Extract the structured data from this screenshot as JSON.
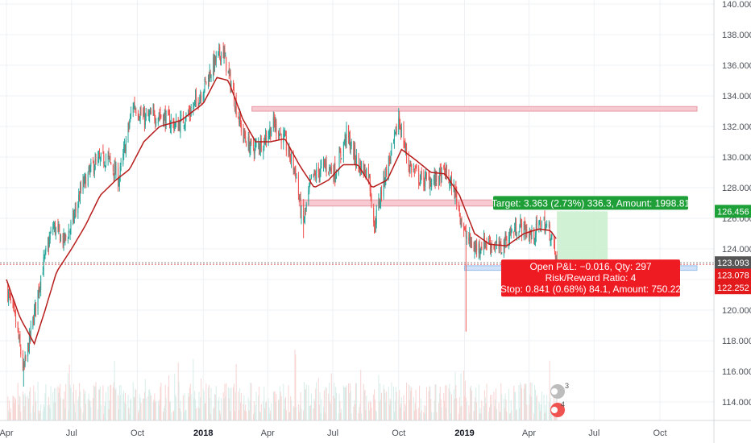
{
  "chart_data": {
    "type": "candlestick",
    "title": "",
    "xlabel": "",
    "ylabel": "",
    "ylim": [
      113,
      140
    ],
    "x_range": [
      "2017-04-01",
      "2019-12-15"
    ],
    "grid": true,
    "x_ticks": [
      {
        "label": "Apr",
        "date": "2017-04-01",
        "bold": false
      },
      {
        "label": "Jul",
        "date": "2017-07-01",
        "bold": false
      },
      {
        "label": "Oct",
        "date": "2017-10-01",
        "bold": false
      },
      {
        "label": "2018",
        "date": "2018-01-01",
        "bold": true
      },
      {
        "label": "Apr",
        "date": "2018-04-01",
        "bold": false
      },
      {
        "label": "Jul",
        "date": "2018-07-01",
        "bold": false
      },
      {
        "label": "Oct",
        "date": "2018-10-01",
        "bold": false
      },
      {
        "label": "2019",
        "date": "2019-01-01",
        "bold": true
      },
      {
        "label": "Apr",
        "date": "2019-04-01",
        "bold": false
      },
      {
        "label": "Jul",
        "date": "2019-07-01",
        "bold": false
      },
      {
        "label": "Oct",
        "date": "2019-10-01",
        "bold": false
      }
    ],
    "y_ticks": [
      "140.000",
      "138.000",
      "136.000",
      "134.000",
      "132.000",
      "130.000",
      "128.000",
      "126.000",
      "124.000",
      "122.000",
      "120.000",
      "118.000",
      "116.000",
      "114.000"
    ],
    "price_path": [
      {
        "date": "2017-04-01",
        "close": 121.5
      },
      {
        "date": "2017-04-15",
        "close": 119.0
      },
      {
        "date": "2017-04-25",
        "close": 116.0
      },
      {
        "date": "2017-05-05",
        "close": 118.5
      },
      {
        "date": "2017-05-20",
        "close": 122.5
      },
      {
        "date": "2017-06-05",
        "close": 125.5
      },
      {
        "date": "2017-06-20",
        "close": 124.5
      },
      {
        "date": "2017-07-01",
        "close": 125.5
      },
      {
        "date": "2017-07-15",
        "close": 128.0
      },
      {
        "date": "2017-08-01",
        "close": 129.5
      },
      {
        "date": "2017-08-20",
        "close": 130.0
      },
      {
        "date": "2017-09-05",
        "close": 128.5
      },
      {
        "date": "2017-09-25",
        "close": 133.5
      },
      {
        "date": "2017-10-10",
        "close": 132.5
      },
      {
        "date": "2017-11-01",
        "close": 132.8
      },
      {
        "date": "2017-11-25",
        "close": 132.0
      },
      {
        "date": "2017-12-15",
        "close": 133.0
      },
      {
        "date": "2018-01-01",
        "close": 134.5
      },
      {
        "date": "2018-01-15",
        "close": 136.0
      },
      {
        "date": "2018-01-28",
        "close": 137.0
      },
      {
        "date": "2018-02-10",
        "close": 134.5
      },
      {
        "date": "2018-02-25",
        "close": 131.5
      },
      {
        "date": "2018-03-10",
        "close": 130.5
      },
      {
        "date": "2018-03-25",
        "close": 131.0
      },
      {
        "date": "2018-04-10",
        "close": 132.2
      },
      {
        "date": "2018-04-25",
        "close": 131.0
      },
      {
        "date": "2018-05-10",
        "close": 129.0
      },
      {
        "date": "2018-05-20",
        "close": 125.5
      },
      {
        "date": "2018-06-01",
        "close": 128.5
      },
      {
        "date": "2018-06-20",
        "close": 129.5
      },
      {
        "date": "2018-07-05",
        "close": 129.0
      },
      {
        "date": "2018-07-20",
        "close": 131.5
      },
      {
        "date": "2018-08-05",
        "close": 129.5
      },
      {
        "date": "2018-08-20",
        "close": 129.0
      },
      {
        "date": "2018-08-28",
        "close": 125.5
      },
      {
        "date": "2018-09-10",
        "close": 128.5
      },
      {
        "date": "2018-09-25",
        "close": 131.0
      },
      {
        "date": "2018-10-01",
        "close": 132.5
      },
      {
        "date": "2018-10-15",
        "close": 129.5
      },
      {
        "date": "2018-11-01",
        "close": 128.5
      },
      {
        "date": "2018-11-20",
        "close": 128.5
      },
      {
        "date": "2018-12-05",
        "close": 129.0
      },
      {
        "date": "2018-12-20",
        "close": 127.5
      },
      {
        "date": "2019-01-01",
        "close": 125.0
      },
      {
        "date": "2019-01-15",
        "close": 124.0
      },
      {
        "date": "2019-02-01",
        "close": 124.5
      },
      {
        "date": "2019-02-20",
        "close": 124.0
      },
      {
        "date": "2019-03-05",
        "close": 125.0
      },
      {
        "date": "2019-03-20",
        "close": 125.5
      },
      {
        "date": "2019-04-05",
        "close": 124.8
      },
      {
        "date": "2019-04-20",
        "close": 125.8
      },
      {
        "date": "2019-05-01",
        "close": 125.0
      },
      {
        "date": "2019-05-10",
        "close": 123.1
      }
    ],
    "moving_average": [
      {
        "date": "2017-04-01",
        "value": 122.0
      },
      {
        "date": "2017-04-20",
        "value": 119.5
      },
      {
        "date": "2017-05-10",
        "value": 117.8
      },
      {
        "date": "2017-05-25",
        "value": 120.0
      },
      {
        "date": "2017-06-10",
        "value": 122.5
      },
      {
        "date": "2017-07-01",
        "value": 124.0
      },
      {
        "date": "2017-07-20",
        "value": 125.5
      },
      {
        "date": "2017-08-10",
        "value": 127.5
      },
      {
        "date": "2017-09-01",
        "value": 128.5
      },
      {
        "date": "2017-09-20",
        "value": 129.2
      },
      {
        "date": "2017-10-10",
        "value": 131.0
      },
      {
        "date": "2017-11-01",
        "value": 132.0
      },
      {
        "date": "2017-12-01",
        "value": 132.4
      },
      {
        "date": "2018-01-01",
        "value": 133.5
      },
      {
        "date": "2018-01-20",
        "value": 135.2
      },
      {
        "date": "2018-02-05",
        "value": 135.0
      },
      {
        "date": "2018-02-25",
        "value": 132.5
      },
      {
        "date": "2018-03-15",
        "value": 131.0
      },
      {
        "date": "2018-04-05",
        "value": 131.0
      },
      {
        "date": "2018-04-25",
        "value": 131.2
      },
      {
        "date": "2018-05-15",
        "value": 129.5
      },
      {
        "date": "2018-06-05",
        "value": 128.0
      },
      {
        "date": "2018-06-25",
        "value": 128.5
      },
      {
        "date": "2018-07-15",
        "value": 129.5
      },
      {
        "date": "2018-08-05",
        "value": 129.5
      },
      {
        "date": "2018-08-25",
        "value": 128.0
      },
      {
        "date": "2018-09-15",
        "value": 128.5
      },
      {
        "date": "2018-10-05",
        "value": 130.5
      },
      {
        "date": "2018-10-25",
        "value": 129.8
      },
      {
        "date": "2018-11-15",
        "value": 129.0
      },
      {
        "date": "2018-12-05",
        "value": 128.9
      },
      {
        "date": "2018-12-25",
        "value": 127.5
      },
      {
        "date": "2019-01-15",
        "value": 125.0
      },
      {
        "date": "2019-02-05",
        "value": 124.3
      },
      {
        "date": "2019-03-01",
        "value": 124.2
      },
      {
        "date": "2019-03-25",
        "value": 125.0
      },
      {
        "date": "2019-04-15",
        "value": 125.3
      },
      {
        "date": "2019-05-01",
        "value": 125.2
      },
      {
        "date": "2019-05-10",
        "value": 124.6
      }
    ],
    "horizontal_zones": [
      {
        "name": "resistance-zone",
        "start": "2018-03-10",
        "end": "2019-12-15",
        "low": 133.0,
        "high": 133.3,
        "color": "#f7c9d0",
        "border": "#e79aa6"
      },
      {
        "name": "middle-zone",
        "start": "2018-05-15",
        "end": "2019-04-25",
        "low": 126.8,
        "high": 127.2,
        "color": "#f7c9d0",
        "border": "#e79aa6"
      },
      {
        "name": "support-zone",
        "start": "2019-01-01",
        "end": "2019-12-15",
        "low": 122.6,
        "high": 122.9,
        "color": "#cfe2f7",
        "border": "#94bde8"
      }
    ],
    "position": {
      "start": "2019-05-10",
      "end": "2019-07-20",
      "entry": 123.093,
      "target": 126.456,
      "stop": 122.252,
      "target_label": "Target: 3.363 (2.73%) 336.3, Amount: 1998.81",
      "pnl_label": "Open P&L: −0.016, Qty: 297",
      "ratio_label": "Risk/Reward Ratio: 4",
      "stop_label": "Stop: 0.841 (0.68%) 84.1, Amount: 750.22"
    },
    "price_labels": [
      {
        "text": "126.456",
        "value": 126.456,
        "color": "#1ea038"
      },
      {
        "text": "123.093",
        "value": 123.093,
        "color": "#555555"
      },
      {
        "text": "123.078",
        "value": 123.078,
        "color": "#e31a1c"
      },
      {
        "text": "122.252",
        "value": 122.252,
        "color": "#e31a1c"
      }
    ],
    "colors": {
      "up": "#26a69a",
      "down": "#ef5350",
      "ma": "#b71c1c",
      "target_zone": "#c9efcc",
      "target_label_bg": "#1e9f37",
      "stop_label_bg": "#ef1b23",
      "volume_up": "#d7ede9",
      "volume_down": "#f7d5d3"
    },
    "watermark_badges": [
      "3",
      "4"
    ]
  }
}
